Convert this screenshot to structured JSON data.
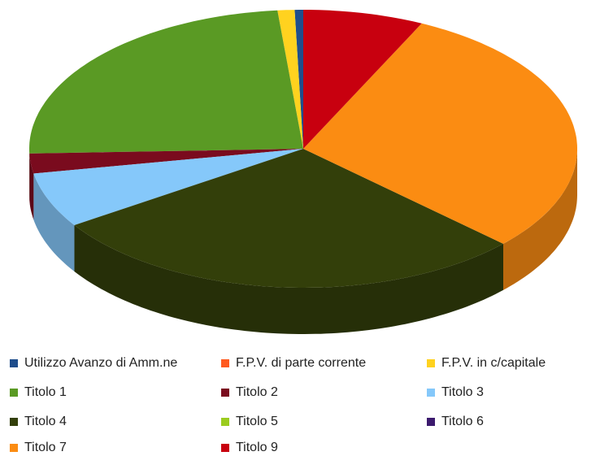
{
  "chart_data": {
    "type": "pie",
    "categories": [
      "Utilizzo Avanzo di Amm.ne",
      "F.P.V. di parte corrente",
      "F.P.V. in c/capitale",
      "Titolo 1",
      "Titolo 2",
      "Titolo 3",
      "Titolo 4",
      "Titolo 5",
      "Titolo 6",
      "Titolo 7",
      "Titolo 9"
    ],
    "values": [
      0.5,
      0,
      1,
      24,
      2.3,
      6.4,
      28.7,
      0,
      0,
      29.8,
      7.1
    ],
    "colors": [
      "#1f4e8c",
      "#ff5a1f",
      "#ffd21f",
      "#5a9a24",
      "#7a0b1e",
      "#85c8fa",
      "#333f0a",
      "#9bcc1f",
      "#3c1a6e",
      "#fb8c12",
      "#c8000f"
    ],
    "legend": "bottom"
  }
}
